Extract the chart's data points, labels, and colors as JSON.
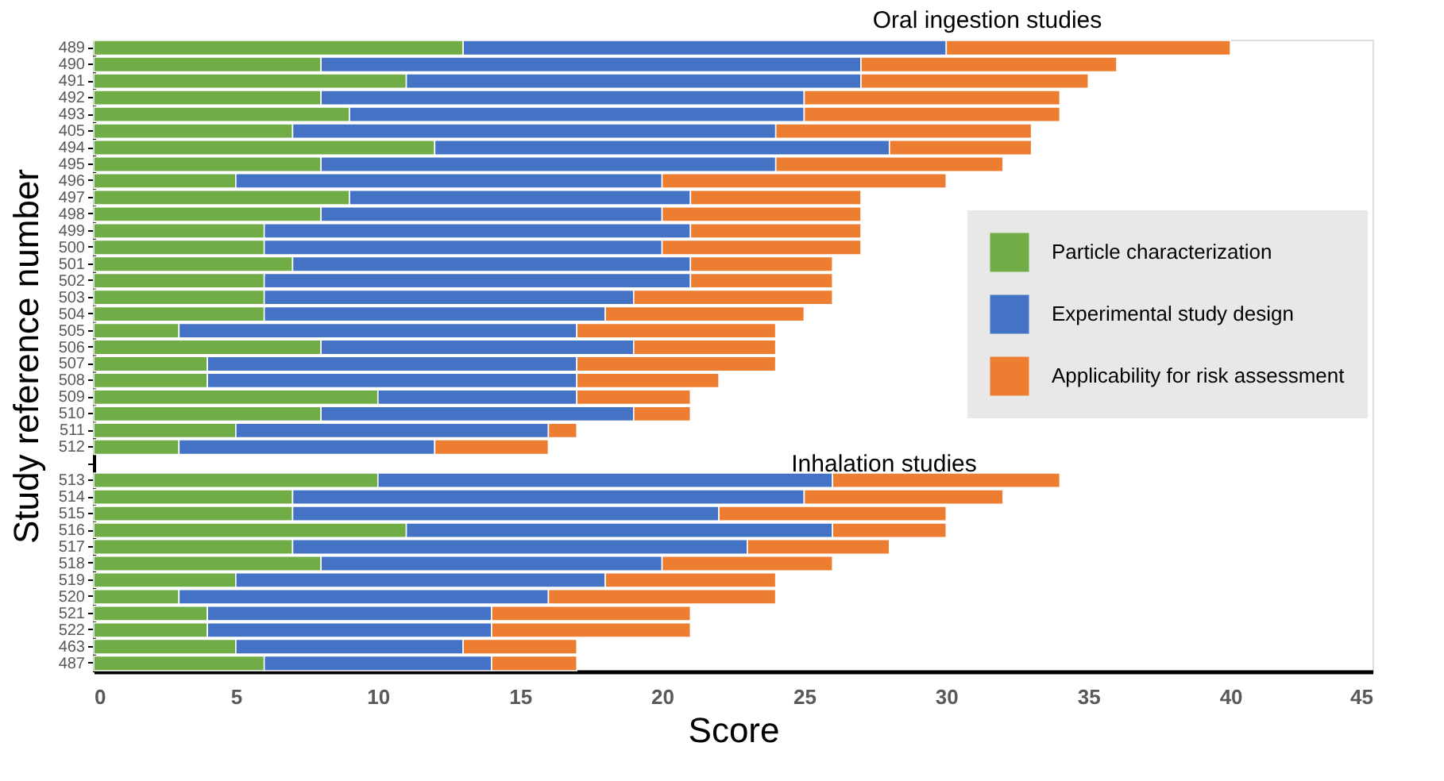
{
  "chart_data": {
    "type": "bar",
    "orientation": "horizontal",
    "stacked": true,
    "title": "Oral ingestion studies",
    "ylabel": "Study reference number",
    "xlabel": "Score",
    "xlim": [
      0,
      45
    ],
    "xticks": [
      0,
      5,
      10,
      15,
      20,
      25,
      30,
      35,
      40,
      45
    ],
    "grid": false,
    "legend": "right",
    "annotations": [
      "Inhalation studies"
    ],
    "categories": [
      "489",
      "490",
      "491",
      "492",
      "493",
      "405",
      "494",
      "495",
      "496",
      "497",
      "498",
      "499",
      "500",
      "501",
      "502",
      "503",
      "504",
      "505",
      "506",
      "507",
      "508",
      "509",
      "510",
      "511",
      "512",
      null,
      "513",
      "514",
      "515",
      "516",
      "517",
      "518",
      "519",
      "520",
      "521",
      "522",
      "463",
      "487"
    ],
    "series": [
      {
        "name": "Particle characterization",
        "color": "#70ad47",
        "values": [
          13,
          8,
          11,
          8,
          9,
          7,
          12,
          8,
          5,
          9,
          8,
          6,
          6,
          7,
          6,
          6,
          6,
          3,
          8,
          4,
          4,
          10,
          8,
          5,
          3,
          null,
          10,
          7,
          7,
          11,
          7,
          8,
          5,
          3,
          4,
          4,
          5,
          6
        ]
      },
      {
        "name": "Experimental study design",
        "color": "#4472c4",
        "values": [
          17,
          19,
          16,
          17,
          16,
          17,
          16,
          16,
          15,
          12,
          12,
          15,
          14,
          14,
          15,
          13,
          12,
          14,
          11,
          13,
          13,
          7,
          11,
          11,
          9,
          null,
          16,
          18,
          15,
          15,
          16,
          12,
          13,
          13,
          10,
          10,
          8,
          8
        ]
      },
      {
        "name": "Applicability for risk assessment",
        "color": "#ed7d31",
        "values": [
          10,
          9,
          8,
          9,
          9,
          9,
          5,
          8,
          10,
          6,
          7,
          6,
          7,
          5,
          5,
          7,
          7,
          7,
          5,
          7,
          5,
          4,
          2,
          1,
          4,
          null,
          8,
          7,
          8,
          4,
          5,
          6,
          6,
          8,
          7,
          7,
          4,
          3
        ]
      }
    ]
  }
}
